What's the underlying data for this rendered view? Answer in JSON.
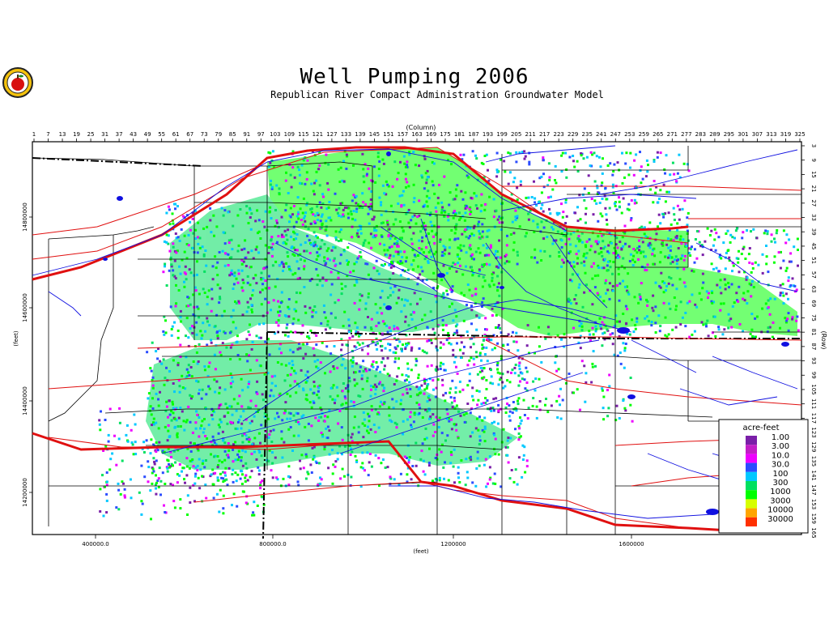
{
  "title": "Well Pumping 2006",
  "subtitle": "Republican River Compact Administration Groundwater Model",
  "axes": {
    "column_label": "(Column)",
    "row_label": "(Row)",
    "x_label": "(feet)",
    "y_label": "(feet)",
    "column_ticks": [
      "1",
      "7",
      "13",
      "19",
      "25",
      "31",
      "37",
      "43",
      "49",
      "55",
      "61",
      "67",
      "73",
      "79",
      "85",
      "91",
      "97",
      "103",
      "109",
      "115",
      "121",
      "127",
      "133",
      "139",
      "145",
      "151",
      "157",
      "163",
      "169",
      "175",
      "181",
      "187",
      "193",
      "199",
      "205",
      "211",
      "217",
      "223",
      "229",
      "235",
      "241",
      "247",
      "253",
      "259",
      "265",
      "271",
      "277",
      "283",
      "289",
      "295",
      "301",
      "307",
      "313",
      "319",
      "325"
    ],
    "row_ticks": [
      "3",
      "9",
      "15",
      "21",
      "27",
      "33",
      "39",
      "45",
      "51",
      "57",
      "63",
      "69",
      "75",
      "81",
      "87",
      "93",
      "99",
      "105",
      "111",
      "117",
      "123",
      "129",
      "135",
      "141",
      "147",
      "153",
      "159",
      "165"
    ],
    "x_ticks": [
      "400000.0",
      "800000.0",
      "1200000",
      "1600000"
    ],
    "y_ticks": [
      "14800000",
      "14600000",
      "14400000",
      "14200000"
    ]
  },
  "legend": {
    "title": "acre-feet",
    "items": [
      {
        "label": "1.00",
        "color": "#7a1fa8"
      },
      {
        "label": "3.00",
        "color": "#c21ec6"
      },
      {
        "label": "10.0",
        "color": "#ee00ff"
      },
      {
        "label": "30.0",
        "color": "#2b4cff"
      },
      {
        "label": "100",
        "color": "#00c8ff"
      },
      {
        "label": "300",
        "color": "#00e060"
      },
      {
        "label": "1000",
        "color": "#00ff00"
      },
      {
        "label": "3000",
        "color": "#d6ff00"
      },
      {
        "label": "10000",
        "color": "#ffa500"
      },
      {
        "label": "30000",
        "color": "#ff3000"
      }
    ]
  },
  "colors": {
    "boundary": "#000000",
    "roads": "#e01010",
    "rivers": "#1010e0",
    "pumping_high": "#00ff00",
    "pumping_mid": "#00e060",
    "pumping_low": "#00c8ff"
  },
  "logo_icon": "apple-seal-icon"
}
